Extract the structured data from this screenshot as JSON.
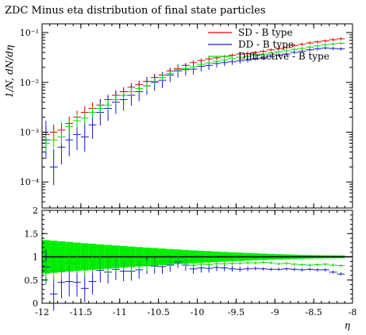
{
  "chart_data": {
    "type": "scatter",
    "title": "ZDC Minus eta distribution of final state particles",
    "xlabel": "η",
    "ylabel": "1/N, dN/dη",
    "xlim": [
      -12,
      -8
    ],
    "main_ylim": [
      3e-05,
      0.15
    ],
    "main_yscale": "log",
    "ratio_ylim": [
      0,
      2
    ],
    "x_ticks": [
      "-12",
      "-11.5",
      "-11",
      "-10.5",
      "-10",
      "-9.5",
      "-9",
      "-8.5",
      "-8"
    ],
    "main_y_ticks": [
      "10⁻⁴",
      "10⁻³",
      "10⁻²",
      "10⁻¹"
    ],
    "ratio_y_ticks": [
      "0",
      "0.5",
      "1",
      "1.5",
      "2"
    ],
    "legend_position": "top-right",
    "x": [
      -11.95,
      -11.85,
      -11.75,
      -11.65,
      -11.55,
      -11.45,
      -11.35,
      -11.25,
      -11.15,
      -11.05,
      -10.95,
      -10.85,
      -10.75,
      -10.65,
      -10.55,
      -10.45,
      -10.35,
      -10.25,
      -10.15,
      -10.05,
      -9.95,
      -9.85,
      -9.75,
      -9.65,
      -9.55,
      -9.45,
      -9.35,
      -9.25,
      -9.15,
      -9.05,
      -8.95,
      -8.85,
      -8.75,
      -8.65,
      -8.55,
      -8.45,
      -8.35,
      -8.25,
      -8.15
    ],
    "series": [
      {
        "name": "SD - B type",
        "color": "#e00000",
        "values": [
          0.0009,
          0.001,
          0.0011,
          0.0015,
          0.002,
          0.0025,
          0.003,
          0.0035,
          0.0045,
          0.0055,
          0.0065,
          0.008,
          0.009,
          0.0105,
          0.0125,
          0.014,
          0.017,
          0.019,
          0.022,
          0.025,
          0.0275,
          0.0295,
          0.031,
          0.033,
          0.035,
          0.037,
          0.038,
          0.04,
          0.042,
          0.045,
          0.048,
          0.05,
          0.055,
          0.058,
          0.062,
          0.065,
          0.068,
          0.072,
          0.075
        ]
      },
      {
        "name": "DD - B type",
        "color": "#1818cc",
        "values": [
          0.0007,
          0.0002,
          0.0005,
          0.0007,
          0.0009,
          0.0008,
          0.0014,
          0.0025,
          0.003,
          0.004,
          0.0045,
          0.0055,
          0.0065,
          0.0085,
          0.01,
          0.011,
          0.014,
          0.017,
          0.018,
          0.0185,
          0.021,
          0.022,
          0.024,
          0.025,
          0.026,
          0.027,
          0.028,
          0.03,
          0.031,
          0.033,
          0.035,
          0.037,
          0.04,
          0.042,
          0.045,
          0.047,
          0.049,
          0.048,
          0.047
        ]
      },
      {
        "name": "Diffractive - B type",
        "color": "#00dd00",
        "values": [
          0.0006,
          0.0007,
          0.0008,
          0.0013,
          0.0017,
          0.0019,
          0.0025,
          0.003,
          0.0035,
          0.0045,
          0.0055,
          0.0065,
          0.0075,
          0.0085,
          0.0105,
          0.0125,
          0.015,
          0.018,
          0.019,
          0.0205,
          0.023,
          0.0245,
          0.0265,
          0.028,
          0.03,
          0.032,
          0.033,
          0.035,
          0.037,
          0.039,
          0.041,
          0.043,
          0.046,
          0.048,
          0.051,
          0.054,
          0.057,
          0.059,
          0.061
        ]
      }
    ],
    "ratio_series": [
      {
        "name": "DD - B type",
        "color": "#1818cc",
        "values": [
          0.78,
          0.2,
          0.45,
          0.47,
          0.45,
          0.32,
          0.47,
          0.71,
          0.67,
          0.73,
          0.69,
          0.69,
          0.72,
          0.81,
          0.8,
          0.79,
          0.82,
          0.89,
          0.82,
          0.74,
          0.76,
          0.75,
          0.77,
          0.76,
          0.74,
          0.73,
          0.74,
          0.75,
          0.74,
          0.73,
          0.73,
          0.74,
          0.73,
          0.72,
          0.73,
          0.72,
          0.72,
          0.67,
          0.63
        ]
      },
      {
        "name": "Diffractive - B type",
        "color": "#00dd00",
        "values": [
          0.67,
          0.7,
          0.73,
          0.87,
          0.85,
          0.76,
          0.83,
          0.86,
          0.78,
          0.82,
          0.85,
          0.81,
          0.83,
          0.81,
          0.84,
          0.89,
          0.88,
          0.95,
          0.86,
          0.82,
          0.84,
          0.83,
          0.85,
          0.85,
          0.86,
          0.86,
          0.87,
          0.87,
          0.88,
          0.87,
          0.85,
          0.86,
          0.84,
          0.83,
          0.82,
          0.83,
          0.84,
          0.82,
          0.81
        ]
      }
    ]
  }
}
